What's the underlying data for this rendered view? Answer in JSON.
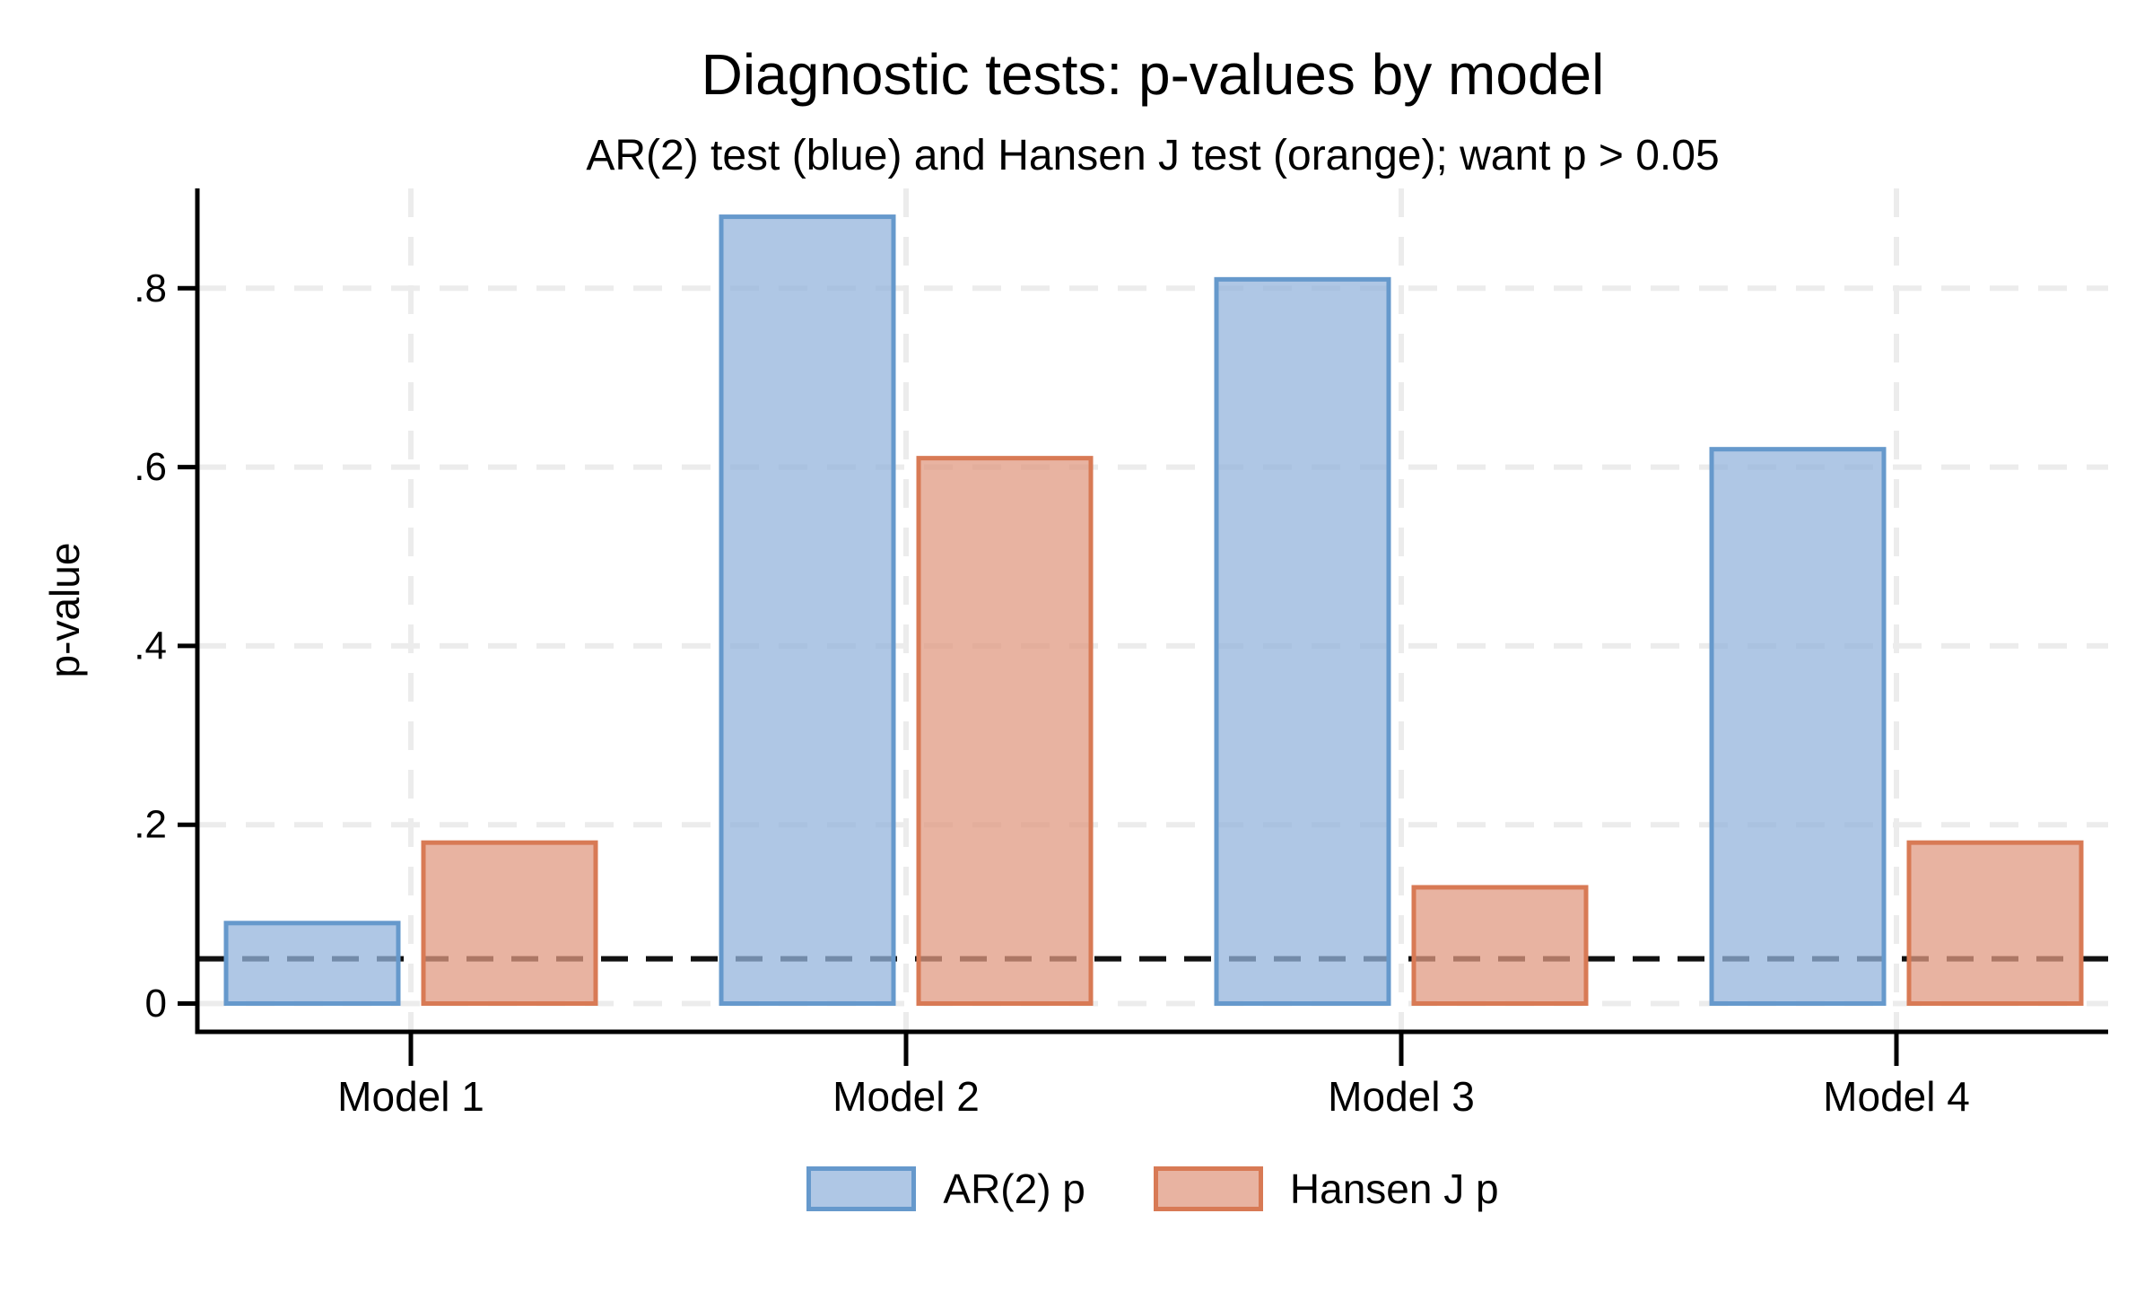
{
  "chart_data": {
    "type": "bar",
    "title": "Diagnostic tests: p-values by model",
    "subtitle": "AR(2) test (blue) and Hansen J test (orange); want p > 0.05",
    "ylabel": "p-value",
    "categories": [
      "Model 1",
      "Model 2",
      "Model 3",
      "Model 4"
    ],
    "series": [
      {
        "name": "AR(2) p",
        "values": [
          0.09,
          0.88,
          0.81,
          0.62
        ],
        "fill": "rgba(148,180,220,0.75)",
        "border": "#6699cc"
      },
      {
        "name": "Hansen J p",
        "values": [
          0.18,
          0.61,
          0.13,
          0.18
        ],
        "fill": "rgba(224,154,130,0.75)",
        "border": "#d87a55"
      }
    ],
    "y_ticks": [
      {
        "v": 0.0,
        "label": "0"
      },
      {
        "v": 0.2,
        "label": ".2"
      },
      {
        "v": 0.4,
        "label": ".4"
      },
      {
        "v": 0.6,
        "label": ".6"
      },
      {
        "v": 0.8,
        "label": ".8"
      }
    ],
    "ylim": [
      0,
      0.91
    ],
    "reference_line": {
      "value": 0.05,
      "style": "dashed",
      "color": "#111111"
    },
    "grid": true,
    "legend_position": "bottom",
    "colors": {
      "grid": "#ececec",
      "axis": "#000000",
      "text": "#000000",
      "background": "#ffffff"
    }
  }
}
